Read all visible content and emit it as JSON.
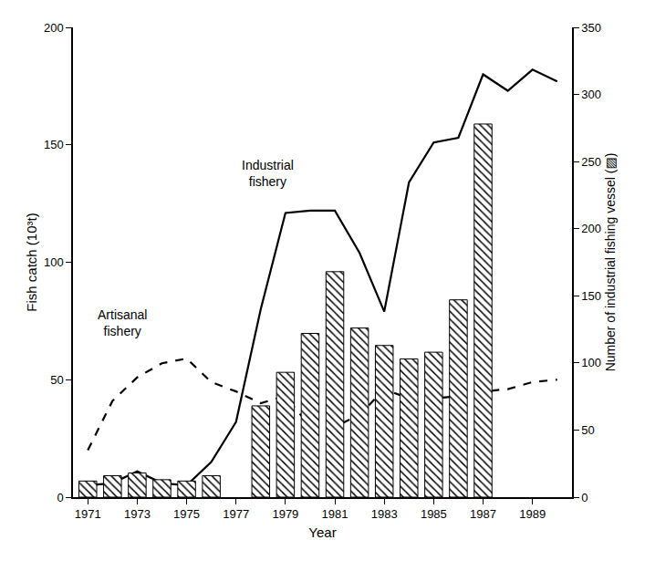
{
  "chart_data": {
    "type": "bar",
    "x_label": "Year",
    "y_label": "Fish catch (10³t)",
    "y2_label": "Number of industrial fishing vessel (▨)",
    "x": [
      1971,
      1972,
      1973,
      1974,
      1975,
      1976,
      1977,
      1978,
      1979,
      1980,
      1981,
      1982,
      1983,
      1984,
      1985,
      1986,
      1987,
      1988,
      1989,
      1990
    ],
    "xlim": [
      1970.4,
      1990.6
    ],
    "xticks": [
      1971,
      1973,
      1975,
      1977,
      1979,
      1981,
      1983,
      1985,
      1987,
      1989
    ],
    "ylim": [
      0,
      200
    ],
    "yticks": [
      0,
      50,
      100,
      150,
      200
    ],
    "y2lim": [
      0,
      350
    ],
    "y2ticks": [
      0,
      50,
      100,
      150,
      200,
      250,
      300,
      350
    ],
    "grid": false,
    "series": [
      {
        "name": "Number of industrial fishing vessel",
        "type": "bar",
        "axis": "y2",
        "color": "#000000",
        "marker": "hatched",
        "values": [
          12,
          16,
          18,
          13,
          12,
          16,
          null,
          68,
          93,
          122,
          168,
          126,
          113,
          103,
          108,
          147,
          278,
          null,
          null,
          null
        ]
      },
      {
        "name": "Industrial fishery",
        "type": "line",
        "color": "#000000",
        "line_style": "solid",
        "values": [
          5,
          6,
          11,
          6,
          5,
          15,
          32,
          80,
          121,
          122,
          122,
          104,
          79,
          134,
          151,
          153,
          180,
          173,
          182,
          177
        ]
      },
      {
        "name": "Artisanal fishery",
        "type": "line",
        "color": "#000000",
        "line_style": "dashed",
        "values": [
          20,
          41,
          51,
          57,
          59,
          49,
          45,
          40,
          43,
          30,
          30,
          35,
          46,
          42,
          42,
          43,
          45,
          46,
          49,
          50
        ]
      }
    ],
    "annotations": [
      {
        "text": "Industrial fishery",
        "x": 1978.3,
        "y": 138
      },
      {
        "text": "Artisanal fishery",
        "x": 1972.4,
        "y": 74
      }
    ]
  }
}
